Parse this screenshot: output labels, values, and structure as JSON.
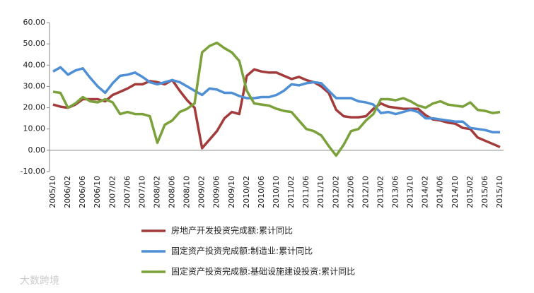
{
  "chart_data": {
    "type": "line",
    "categories": [
      "2005/10",
      null,
      "2006/02",
      null,
      "2006/06",
      null,
      "2006/10",
      null,
      "2007/02",
      null,
      "2007/06",
      null,
      "2007/10",
      null,
      "2008/02",
      null,
      "2008/06",
      null,
      "2008/10",
      null,
      "2009/02",
      null,
      "2009/06",
      null,
      "2009/10",
      null,
      "2010/02",
      null,
      "2010/06",
      null,
      "2010/10",
      null,
      "2011/02",
      null,
      "2011/06",
      null,
      "2011/10",
      null,
      "2012/02",
      null,
      "2012/06",
      null,
      "2012/10",
      null,
      "2013/02",
      null,
      "2013/06",
      null,
      "2013/10",
      null,
      "2014/02",
      null,
      "2014/06",
      null,
      "2014/10",
      null,
      "2015/02",
      null,
      "2015/06",
      null,
      "2015/10"
    ],
    "series": [
      {
        "name": "房地产开发投资完成额:累计同比",
        "color": "#a33b3b",
        "values": [
          21.5,
          20.5,
          20,
          21.5,
          24,
          24,
          24,
          23,
          26,
          27.5,
          29,
          31,
          31,
          32.5,
          32,
          31,
          33,
          28,
          23.5,
          20,
          1,
          5,
          9,
          15,
          18,
          17,
          35,
          38,
          37,
          36.5,
          36.5,
          35,
          33.5,
          34.5,
          33,
          32,
          30,
          27,
          19,
          16,
          15.5,
          15.5,
          16,
          19.5,
          22,
          20.5,
          20,
          19.5,
          19.5,
          19.5,
          16.5,
          14.5,
          14,
          13,
          12.5,
          10.5,
          10,
          6,
          4.5,
          3,
          1.5
        ]
      },
      {
        "name": "固定资产投资完成额:制造业:累计同比",
        "color": "#4f8fd6",
        "values": [
          37,
          39,
          35.5,
          37.5,
          38.5,
          34,
          30,
          27,
          31.5,
          35,
          35.5,
          36.5,
          34.5,
          32,
          31,
          32,
          33,
          32,
          30,
          28,
          26,
          29,
          28.5,
          27,
          27,
          25.5,
          24.5,
          24.5,
          25,
          25,
          26,
          28,
          31,
          30.5,
          31.5,
          32,
          31.5,
          28,
          24.5,
          24.5,
          24.5,
          23,
          22.5,
          21.5,
          17.5,
          18,
          17,
          18,
          19,
          18,
          15,
          15,
          14.5,
          14,
          13.5,
          13.5,
          10.5,
          10,
          9.5,
          8.5,
          8.5
        ]
      },
      {
        "name": "固定资产投资完成额:基础设施建设投资:累计同比",
        "color": "#7aa13a",
        "values": [
          27.5,
          27,
          20,
          22,
          25,
          23,
          22.5,
          24,
          22.5,
          17,
          18,
          17,
          17,
          16,
          3.5,
          12,
          14,
          18,
          19.5,
          22,
          46,
          49,
          50.5,
          48,
          46,
          42,
          28,
          22,
          21.5,
          21,
          19.5,
          18.5,
          18,
          14,
          10,
          9,
          7,
          2,
          -2.5,
          2.5,
          9,
          10,
          14,
          17,
          24,
          24,
          23.5,
          24.5,
          23,
          21,
          20,
          22,
          23,
          21.5,
          21,
          20.5,
          22.5,
          19,
          18.5,
          17.5,
          18
        ]
      }
    ],
    "ylim": [
      -10,
      60
    ],
    "yticks": [
      {
        "value": -10,
        "label": "-10.00"
      },
      {
        "value": 0,
        "label": "0.00"
      },
      {
        "value": 10,
        "label": "10.00"
      },
      {
        "value": 20,
        "label": "20.00"
      },
      {
        "value": 30,
        "label": "30.00"
      },
      {
        "value": 40,
        "label": "40.00"
      },
      {
        "value": 50,
        "label": "50.00"
      },
      {
        "value": 60,
        "label": "60.00"
      }
    ],
    "grid": false,
    "legend": "bottom",
    "annotations": [
      "大数跨境"
    ]
  }
}
